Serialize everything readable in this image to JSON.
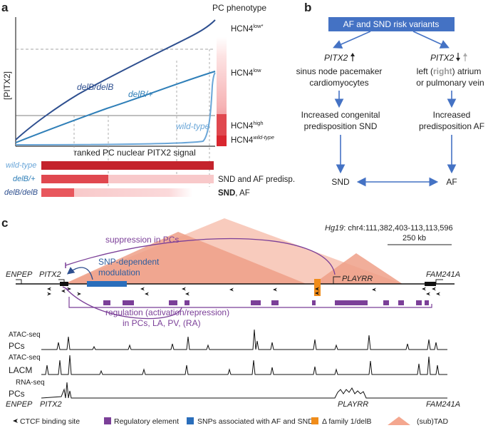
{
  "panels": {
    "a": {
      "letter": "a",
      "phenotype_header": "PC phenotype",
      "y_axis_label": "[PITX2]",
      "x_axis_label": "ranked PC nuclear PITX2 signal",
      "curves": {
        "delB_delB": "delB/delB",
        "delB_plus": "delB/+",
        "wild_type": "wild-type"
      },
      "phenotypes": [
        {
          "base": "HCN4",
          "sup": "low*"
        },
        {
          "base": "HCN4",
          "sup": "low"
        },
        {
          "base": "HCN4",
          "sup": "high"
        },
        {
          "base": "HCN4",
          "sup": "wild-type"
        }
      ],
      "genotype_bars": [
        {
          "label": "wild-type",
          "outcome": "",
          "outcome_bold": ""
        },
        {
          "label": "delB/+",
          "outcome": "SND and AF predisp.",
          "outcome_bold": ""
        },
        {
          "label": "delB/delB",
          "outcome": ", AF",
          "outcome_bold": "SND"
        }
      ]
    },
    "b": {
      "letter": "b",
      "top_box": "AF and SND risk variants",
      "left_gene": "PITX2",
      "left_lines": [
        "sinus node pacemaker",
        "cardiomyocytes"
      ],
      "right_gene": "PITX2",
      "right_line1_a": "left (",
      "right_line1_b": "right",
      "right_line1_c": ") atrium",
      "right_line2": "or pulmonary vein",
      "left_outcome": [
        "Increased congenital",
        "predisposition SND"
      ],
      "right_outcome": [
        "Increased",
        "predisposition AF"
      ],
      "sink_left": "SND",
      "sink_right": "AF"
    },
    "c": {
      "letter": "c",
      "coords_prefix": "Hg19",
      "coords": ": chr4:111,382,403-113,113,596",
      "scale_label": "250 kb",
      "suppression_label": "suppression in PCs",
      "snp_label_lines": [
        "SNP-dependent",
        "modulation"
      ],
      "regulation_lines": [
        "regulation (activation/repression)",
        "in PCs, LA, PV, (RA)"
      ],
      "genes_top": [
        "ENPEP",
        "PITX2",
        "PLAYRR",
        "FAM241A"
      ],
      "tracks": [
        {
          "assay": "ATAC-seq",
          "cell": "PCs"
        },
        {
          "assay": "ATAC-seq",
          "cell": "LACM"
        },
        {
          "assay": "RNA-seq",
          "cell": "PCs"
        }
      ],
      "genes_bottom": [
        "ENPEP",
        "PITX2",
        "PLAYRR",
        "FAM241A"
      ],
      "legend": [
        {
          "label": "CTCF binding site",
          "color": "#111111",
          "icon": "arrowhead-icon"
        },
        {
          "label": "Regulatory element",
          "color": "#7b3f98",
          "icon": "square-icon"
        },
        {
          "label": "SNPs associated with AF and SND",
          "color": "#2a6ebb",
          "icon": "square-icon"
        },
        {
          "label": "Δ family 1/delB",
          "color": "#f08c1a",
          "icon": "square-icon"
        },
        {
          "label": "(sub)TAD",
          "color": "#f4a78f",
          "icon": "triangle-icon"
        }
      ]
    }
  },
  "colors": {
    "dark_blue": "#2e4f8f",
    "mid_blue": "#2f7fb8",
    "light_blue": "#6aa6d8",
    "red": "#d9262f",
    "pink": "#f3a5a8",
    "light_pink": "#fbd9da",
    "purple": "#7b3f98",
    "tad": "#f4a78f",
    "tad_dark": "#e98a6c",
    "orange": "#f08c1a",
    "snp_blue": "#2a6ebb",
    "box_blue": "#4472c4"
  }
}
